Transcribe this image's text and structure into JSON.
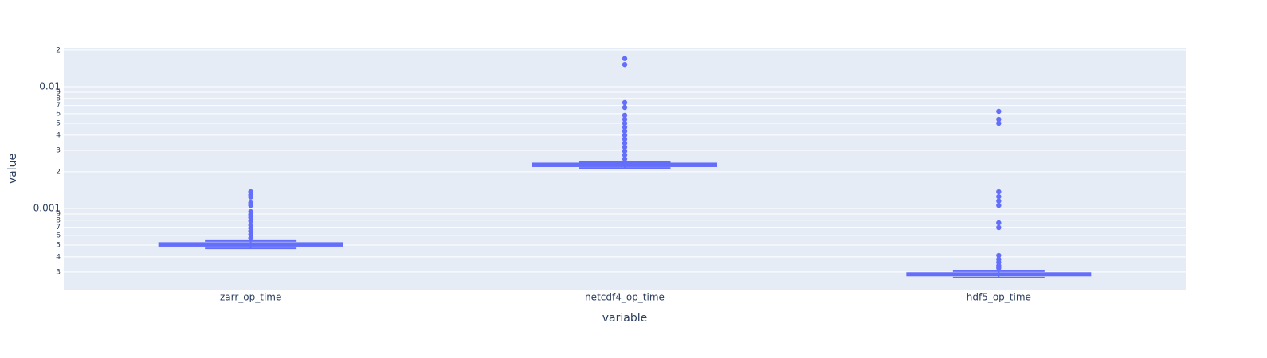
{
  "chart_data": {
    "type": "box",
    "x_label": "variable",
    "y_label": "value",
    "categories": [
      "zarr_op_time",
      "netcdf4_op_time",
      "hdf5_op_time"
    ],
    "color": "#636efa",
    "log_y": true,
    "grid": true,
    "ylim": [
      0.000212,
      0.0209
    ],
    "yticks": [
      {
        "value": 0.02,
        "label": "2"
      },
      0.01,
      {
        "value": 0.009,
        "label": "9"
      },
      {
        "value": 0.008,
        "label": "8"
      },
      {
        "value": 0.007,
        "label": "7"
      },
      {
        "value": 0.006,
        "label": "6"
      },
      {
        "value": 0.005,
        "label": "5"
      },
      {
        "value": 0.004,
        "label": "4"
      },
      {
        "value": 0.003,
        "label": "3"
      },
      {
        "value": 0.002,
        "label": "2"
      },
      0.001,
      {
        "value": 0.0009,
        "label": "9"
      },
      {
        "value": 0.0008,
        "label": "8"
      },
      {
        "value": 0.0007,
        "label": "7"
      },
      {
        "value": 0.0006,
        "label": "6"
      },
      {
        "value": 0.0005,
        "label": "5"
      },
      {
        "value": 0.0004,
        "label": "4"
      },
      {
        "value": 0.0003,
        "label": "3"
      }
    ],
    "boxes": [
      {
        "min": 0.00047,
        "q1": 0.000493,
        "median": 0.000507,
        "q3": 0.00052,
        "max": 0.00054,
        "outliers": [
          0.00137,
          0.00129,
          0.00124,
          0.00111,
          0.00106,
          0.00094,
          0.00089,
          0.00084,
          0.00079,
          0.00073,
          0.00069,
          0.00065,
          0.00061,
          0.00057
        ]
      },
      {
        "min": 0.00215,
        "q1": 0.00222,
        "median": 0.00229,
        "q3": 0.00234,
        "max": 0.0024,
        "outliers": [
          0.017,
          0.0152,
          0.0074,
          0.00676,
          0.00582,
          0.00539,
          0.005,
          0.00464,
          0.00431,
          0.00399,
          0.00371,
          0.00344,
          0.00319,
          0.00296,
          0.00275,
          0.00255
        ]
      },
      {
        "min": 0.00027,
        "q1": 0.000281,
        "median": 0.000287,
        "q3": 0.000294,
        "max": 0.000305,
        "outliers": [
          0.00627,
          0.00539,
          0.005,
          0.00137,
          0.00125,
          0.00115,
          0.00106,
          0.000762,
          0.000697,
          0.000411,
          0.000381,
          0.00036,
          0.000338,
          0.000323
        ]
      }
    ]
  }
}
